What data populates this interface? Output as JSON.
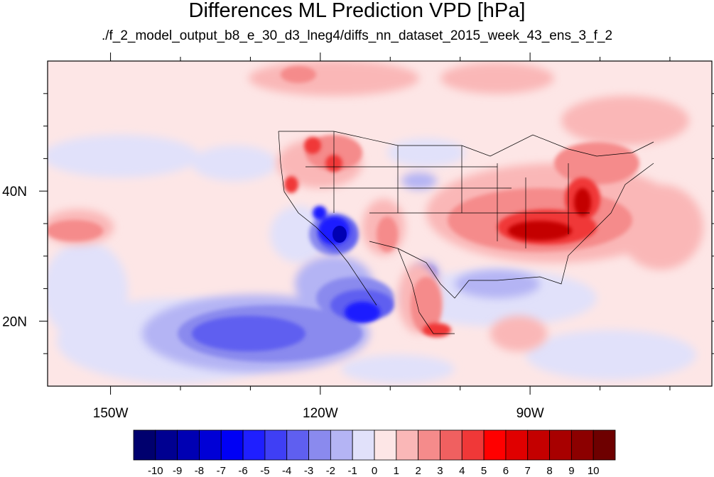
{
  "title": "Differences ML Prediction VPD [hPa]",
  "subtitle": "./f_2_model_output_b8_e_30_d3_lneg4/diffs_nn_dataset_2015_week_43_ens_3_f_2",
  "axes": {
    "lon_range": [
      -159,
      -64
    ],
    "lat_range": [
      10,
      60
    ],
    "lon_ticks": [
      {
        "value": -150,
        "label": "150W"
      },
      {
        "value": -120,
        "label": "120W"
      },
      {
        "value": -90,
        "label": "90W"
      }
    ],
    "lat_ticks": [
      {
        "value": 40,
        "label": "40N"
      },
      {
        "value": 20,
        "label": "20N"
      }
    ]
  },
  "colorbar": {
    "labels": [
      "-10",
      "-9",
      "-8",
      "-7",
      "-6",
      "-5",
      "-4",
      "-3",
      "-2",
      "-1",
      "0",
      "1",
      "2",
      "3",
      "4",
      "5",
      "6",
      "7",
      "8",
      "9",
      "10"
    ],
    "colors": [
      "#00006e",
      "#000091",
      "#0000b3",
      "#0000d6",
      "#0000f5",
      "#1f1fff",
      "#3f3ff5",
      "#5f5ff0",
      "#8a8aee",
      "#b4b4f4",
      "#e1e1fa",
      "#fde6e6",
      "#fab7b7",
      "#f58b8b",
      "#f06060",
      "#f03838",
      "#ff0000",
      "#e00000",
      "#c40000",
      "#a80000",
      "#8c0000",
      "#6e0000"
    ]
  },
  "regions": [
    {
      "name": "eastern-us-positive",
      "value": 7
    },
    {
      "name": "california-mexico-negative",
      "value": -6
    },
    {
      "name": "pacific-negative",
      "value": -4
    },
    {
      "name": "mexico-positive",
      "value": 6
    },
    {
      "name": "pacific-north-positive",
      "value": 2
    }
  ]
}
